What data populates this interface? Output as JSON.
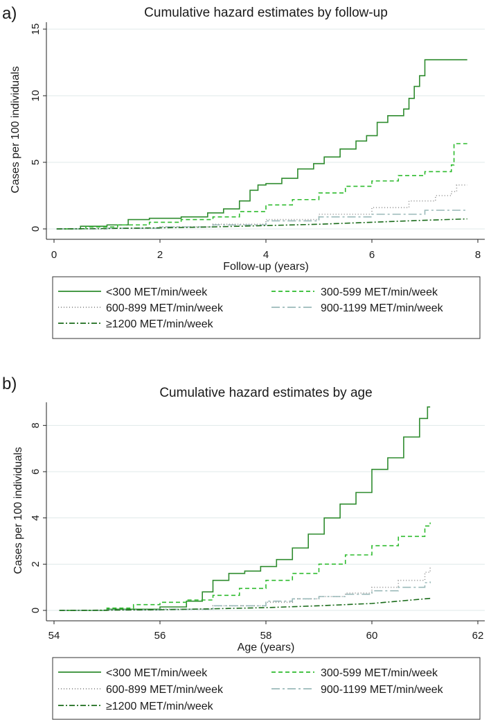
{
  "chart_data": [
    {
      "type": "line",
      "panel_label": "a)",
      "title": "Cumulative hazard estimates by follow-up",
      "xlabel": "Follow-up (years)",
      "ylabel": "Cases per 100 individuals",
      "xlim": [
        0,
        8
      ],
      "ylim": [
        0,
        15
      ],
      "xticks": [
        "0",
        "2",
        "4",
        "6",
        "8"
      ],
      "yticks": [
        "0",
        "5",
        "10",
        "15"
      ],
      "grid": true,
      "legend_position": "bottom",
      "series": [
        {
          "name": "<300 MET/min/week",
          "color": "#2e8b2e",
          "dash": "solid",
          "x": [
            0.05,
            0.5,
            1.0,
            1.4,
            1.8,
            2.4,
            2.9,
            3.2,
            3.5,
            3.7,
            3.85,
            4.0,
            4.3,
            4.6,
            4.9,
            5.1,
            5.4,
            5.7,
            5.9,
            6.1,
            6.3,
            6.5,
            6.6,
            6.7,
            6.8,
            6.9,
            7.0,
            7.8
          ],
          "y": [
            0,
            0.2,
            0.3,
            0.7,
            0.8,
            0.9,
            1.2,
            1.5,
            2.1,
            2.9,
            3.3,
            3.4,
            3.8,
            4.5,
            4.9,
            5.4,
            6.0,
            6.6,
            7.0,
            8.0,
            8.5,
            8.5,
            9.0,
            9.8,
            10.7,
            11.5,
            12.7,
            12.7
          ],
          "step": true
        },
        {
          "name": "300-599 MET/min/week",
          "color": "#2dbb2d",
          "dash": "6,4",
          "x": [
            0.05,
            0.6,
            1.2,
            1.8,
            2.4,
            3.0,
            3.5,
            4.0,
            4.5,
            5.0,
            5.5,
            6.0,
            6.5,
            7.0,
            7.5,
            7.55,
            7.8
          ],
          "y": [
            0,
            0.15,
            0.3,
            0.5,
            0.7,
            0.9,
            1.3,
            1.8,
            2.2,
            2.7,
            3.2,
            3.6,
            4.0,
            4.3,
            4.8,
            6.4,
            6.4
          ],
          "step": true
        },
        {
          "name": "600-899 MET/min/week",
          "color": "#8a8a8a",
          "dash": "1,3",
          "x": [
            0.05,
            1.0,
            2.0,
            3.0,
            4.0,
            5.0,
            6.0,
            6.7,
            7.2,
            7.5,
            7.6,
            7.8
          ],
          "y": [
            0,
            0.05,
            0.15,
            0.35,
            0.7,
            1.1,
            1.6,
            2.1,
            2.5,
            2.8,
            3.3,
            3.3
          ],
          "step": true
        },
        {
          "name": "900-1199 MET/min/week",
          "color": "#9ab9b9",
          "dash": "12,4,3,4",
          "x": [
            0.05,
            1.0,
            2.0,
            3.0,
            4.0,
            5.0,
            6.0,
            7.0,
            7.8
          ],
          "y": [
            0,
            0.05,
            0.15,
            0.3,
            0.6,
            0.9,
            1.1,
            1.4,
            1.4
          ],
          "step": true
        },
        {
          "name": "≥1200 MET/min/week",
          "color": "#1a6b1a",
          "dash": "8,3,2,3",
          "x": [
            0.05,
            1.0,
            2.0,
            3.0,
            4.0,
            5.0,
            6.0,
            7.0,
            7.8
          ],
          "y": [
            0,
            0.03,
            0.08,
            0.15,
            0.25,
            0.35,
            0.5,
            0.65,
            0.75
          ],
          "step": false
        }
      ]
    },
    {
      "type": "line",
      "panel_label": "b)",
      "title": "Cumulative hazard estimates by age",
      "xlabel": "Age (years)",
      "ylabel": "Cases per 100 individuals",
      "xlim": [
        54,
        62
      ],
      "ylim": [
        0,
        9
      ],
      "xticks": [
        "54",
        "56",
        "58",
        "60",
        "62"
      ],
      "yticks": [
        "0",
        "2",
        "4",
        "6",
        "8"
      ],
      "grid": true,
      "legend_position": "bottom",
      "series": [
        {
          "name": "<300 MET/min/week",
          "color": "#2e8b2e",
          "dash": "solid",
          "x": [
            54.1,
            55.0,
            56.0,
            56.5,
            56.8,
            57.0,
            57.3,
            57.6,
            57.9,
            58.2,
            58.5,
            58.8,
            59.1,
            59.4,
            59.7,
            60.0,
            60.3,
            60.6,
            60.9,
            61.05,
            61.1
          ],
          "y": [
            0,
            0.05,
            0.15,
            0.4,
            0.8,
            1.3,
            1.6,
            1.7,
            1.9,
            2.2,
            2.7,
            3.3,
            4.0,
            4.6,
            5.1,
            6.1,
            6.6,
            7.5,
            8.3,
            8.8,
            8.8
          ],
          "step": true
        },
        {
          "name": "300-599 MET/min/week",
          "color": "#2dbb2d",
          "dash": "6,4",
          "x": [
            54.1,
            55.0,
            55.5,
            56.0,
            56.5,
            57.0,
            57.5,
            58.0,
            58.5,
            59.0,
            59.5,
            60.0,
            60.5,
            61.0,
            61.1
          ],
          "y": [
            0,
            0.1,
            0.25,
            0.35,
            0.45,
            0.65,
            0.95,
            1.3,
            1.6,
            2.0,
            2.4,
            2.8,
            3.2,
            3.65,
            3.8
          ],
          "step": true
        },
        {
          "name": "600-899 MET/min/week",
          "color": "#8a8a8a",
          "dash": "1,3",
          "x": [
            54.1,
            55.0,
            56.0,
            57.0,
            58.0,
            58.5,
            59.0,
            59.5,
            60.0,
            60.5,
            61.0,
            61.1
          ],
          "y": [
            0,
            0.02,
            0.05,
            0.2,
            0.35,
            0.5,
            0.6,
            0.75,
            1.0,
            1.3,
            1.65,
            1.85
          ],
          "step": true
        },
        {
          "name": "900-1199 MET/min/week",
          "color": "#9ab9b9",
          "dash": "12,4,3,4",
          "x": [
            54.1,
            55.0,
            56.0,
            57.0,
            58.0,
            58.5,
            59.0,
            59.5,
            60.0,
            60.5,
            61.0,
            61.1
          ],
          "y": [
            0,
            0.02,
            0.05,
            0.2,
            0.4,
            0.5,
            0.6,
            0.7,
            0.85,
            1.0,
            1.2,
            1.25
          ],
          "step": true
        },
        {
          "name": "≥1200 MET/min/week",
          "color": "#1a6b1a",
          "dash": "8,3,2,3",
          "x": [
            54.1,
            55.0,
            56.0,
            57.0,
            58.0,
            59.0,
            60.0,
            60.5,
            61.0,
            61.1
          ],
          "y": [
            0,
            0.01,
            0.03,
            0.07,
            0.12,
            0.2,
            0.3,
            0.4,
            0.5,
            0.52
          ],
          "step": false
        }
      ]
    }
  ]
}
